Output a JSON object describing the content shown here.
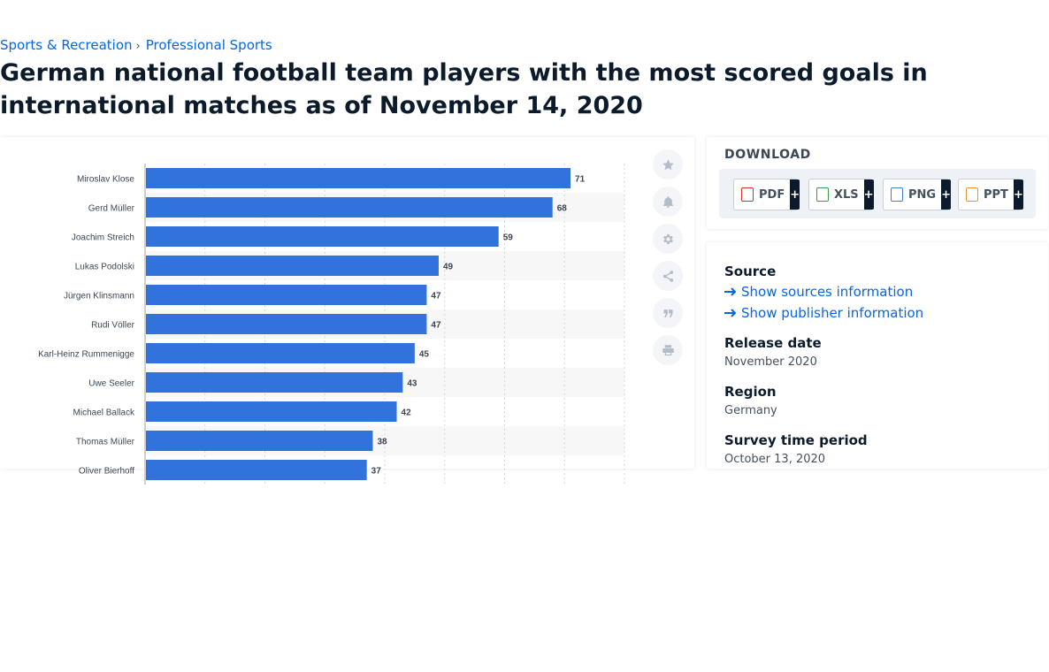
{
  "breadcrumb": {
    "items": [
      "Sports & Recreation",
      "Professional Sports"
    ],
    "separator": "›"
  },
  "page": {
    "title": "German national football team players with the most scored goals in international matches as of November 14, 2020"
  },
  "colors": {
    "bar": "#3172dc",
    "link": "#0666e5",
    "title": "#0b1b2c"
  },
  "chart_data": {
    "type": "bar",
    "orientation": "horizontal",
    "categories": [
      "Miroslav Klose",
      "Gerd Müller",
      "Joachim Streich",
      "Lukas Podolski",
      "Jürgen Klinsmann",
      "Rudi Völler",
      "Karl-Heinz Rummenigge",
      "Uwe Seeler",
      "Michael Ballack",
      "Thomas Müller",
      "Oliver Bierhoff"
    ],
    "values": [
      71,
      68,
      59,
      49,
      47,
      47,
      45,
      43,
      42,
      38,
      37
    ],
    "xlim": [
      0,
      80
    ],
    "grid": true,
    "data_labels": true,
    "title": "",
    "xlabel": "",
    "ylabel": ""
  },
  "tools": [
    {
      "name": "favorite",
      "icon": "star-icon"
    },
    {
      "name": "notification",
      "icon": "bell-icon"
    },
    {
      "name": "settings",
      "icon": "gear-icon"
    },
    {
      "name": "share",
      "icon": "share-icon"
    },
    {
      "name": "cite",
      "icon": "quote-icon"
    },
    {
      "name": "print",
      "icon": "print-icon"
    }
  ],
  "download": {
    "title": "DOWNLOAD",
    "buttons": [
      {
        "label": "PDF",
        "icon": "pdf-file-icon",
        "color": "#d93025"
      },
      {
        "label": "XLS",
        "icon": "xls-file-icon",
        "color": "#3a9b45"
      },
      {
        "label": "PNG",
        "icon": "png-file-icon",
        "color": "#3b82c4"
      },
      {
        "label": "PPT",
        "icon": "ppt-file-icon",
        "color": "#e8912d"
      }
    ],
    "plus": "+"
  },
  "meta": {
    "source_heading": "Source",
    "sources_link": "Show sources information",
    "publisher_link": "Show publisher information",
    "release_heading": "Release date",
    "release_value": "November 2020",
    "region_heading": "Region",
    "region_value": "Germany",
    "survey_heading": "Survey time period",
    "survey_value": "October 13, 2020"
  }
}
